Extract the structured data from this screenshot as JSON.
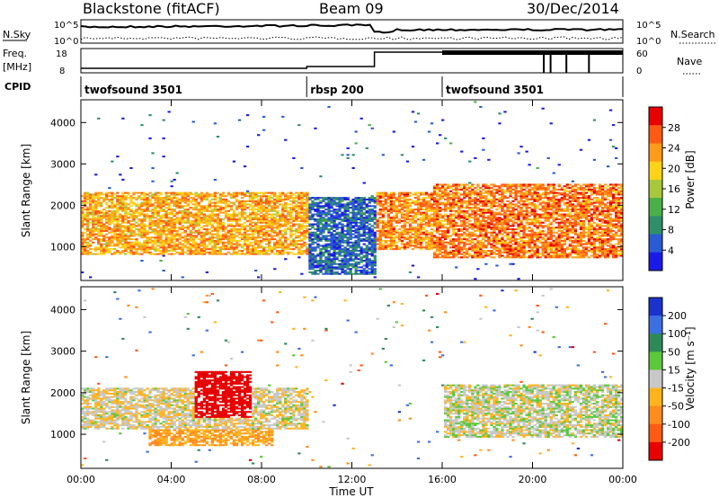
{
  "header": {
    "station": "Blackstone (fitACF)",
    "beam": "Beam 09",
    "date": "30/Dec/2014"
  },
  "noise_panel": {
    "left_label": "N.Sky",
    "right_label": "N.Search",
    "left_ticks": [
      "10^5",
      "10^0"
    ],
    "right_ticks": [
      "10^5",
      "10^0"
    ]
  },
  "freq_panel": {
    "left_label_1": "Freq.",
    "left_label_2": "[MHz]",
    "right_label": "Nave",
    "left_ticks": [
      "18",
      "8"
    ],
    "right_ticks": [
      "60",
      "0"
    ]
  },
  "cpid": {
    "label": "CPID",
    "segments": [
      {
        "name": "twofsound 3501",
        "start": 0.0,
        "end": 10.0
      },
      {
        "name": "rbsp 200",
        "start": 10.0,
        "end": 16.0
      },
      {
        "name": "twofsound 3501",
        "start": 16.0,
        "end": 24.0
      }
    ]
  },
  "x_axis": {
    "label": "Time UT",
    "ticks": [
      "00:00",
      "04:00",
      "08:00",
      "12:00",
      "16:00",
      "20:00",
      "00:00"
    ]
  },
  "power_panel": {
    "ylabel": "Slant Range [km]",
    "yticks": [
      "1000",
      "2000",
      "3000",
      "4000"
    ],
    "colorbar_label": "Power [dB]",
    "colorbar_ticks": [
      "4",
      "8",
      "12",
      "16",
      "20",
      "24",
      "28"
    ],
    "colors": [
      "#1a1ae6",
      "#2a5bd2",
      "#2f8f6b",
      "#4daf4a",
      "#a8c83c",
      "#ffd21a",
      "#ff9a1a",
      "#ff5a14",
      "#e60000"
    ]
  },
  "velocity_panel": {
    "ylabel": "Slant Range [km]",
    "yticks": [
      "1000",
      "2000",
      "3000",
      "4000"
    ],
    "colorbar_label": "Velocity [m s⁻¹]",
    "colorbar_ticks": [
      "200",
      "100",
      "50",
      "15",
      "-15",
      "-50",
      "-100",
      "-200"
    ],
    "colors": [
      "#1a33cc",
      "#3d6fe0",
      "#2e8b57",
      "#5cc83c",
      "#c8c8c8",
      "#ffb41e",
      "#ff8c1e",
      "#ff5a14",
      "#e60000"
    ]
  },
  "chart_data": [
    {
      "type": "heatmap",
      "title": "Power",
      "xlabel": "Time UT",
      "ylabel": "Slant Range [km]",
      "xlim": [
        0,
        24
      ],
      "ylim": [
        180,
        4550
      ],
      "clim": [
        0,
        32
      ],
      "bands": [
        {
          "t0": 0.0,
          "t1": 10.0,
          "r0": 800,
          "r1": 2300,
          "p": 22
        },
        {
          "t0": 10.0,
          "t1": 13.0,
          "r0": 300,
          "r1": 2200,
          "p": 6
        },
        {
          "t0": 13.0,
          "t1": 15.5,
          "r0": 900,
          "r1": 2300,
          "p": 24
        },
        {
          "t0": 15.5,
          "t1": 24.0,
          "r0": 700,
          "r1": 2500,
          "p": 25
        }
      ]
    },
    {
      "type": "heatmap",
      "title": "Velocity",
      "xlabel": "Time UT",
      "ylabel": "Slant Range [km]",
      "xlim": [
        0,
        24
      ],
      "ylim": [
        180,
        4550
      ],
      "clim": [
        -200,
        200
      ],
      "bands": [
        {
          "t0": 0.0,
          "t1": 10.0,
          "r0": 1100,
          "r1": 2100,
          "v": -10
        },
        {
          "t0": 5.0,
          "t1": 7.5,
          "r0": 1400,
          "r1": 2500,
          "v": -180
        },
        {
          "t0": 3.0,
          "t1": 8.5,
          "r0": 700,
          "r1": 1100,
          "v": -50
        },
        {
          "t0": 16.0,
          "t1": 24.0,
          "r0": 900,
          "r1": 2200,
          "v": 0
        }
      ]
    }
  ]
}
